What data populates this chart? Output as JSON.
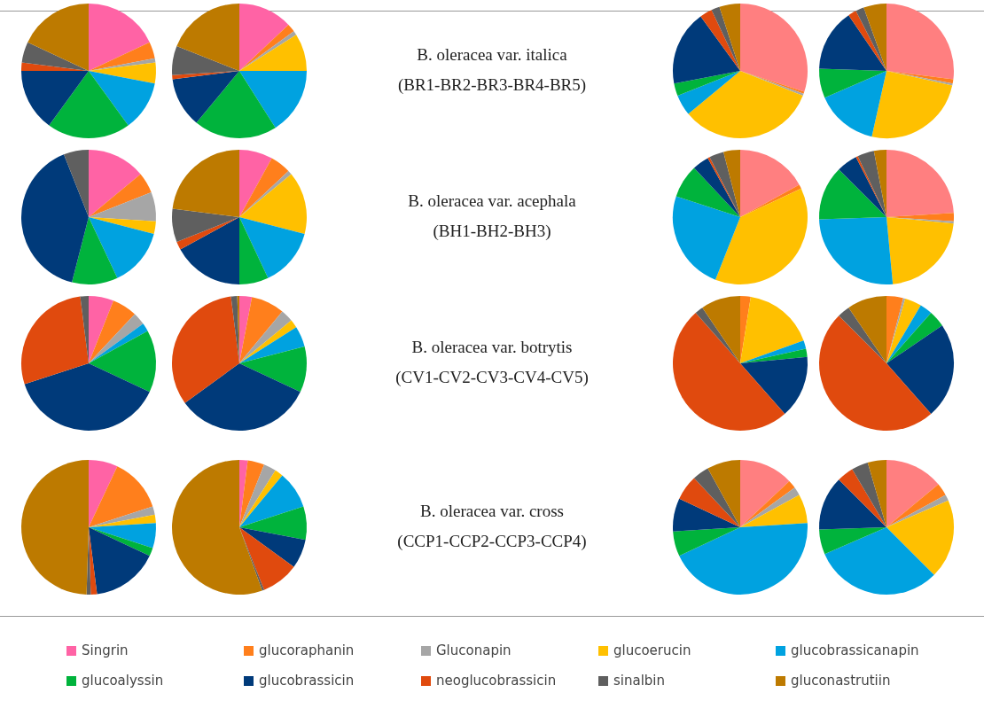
{
  "chart_data": [
    {
      "type": "pie",
      "categories": [
        "Singrin",
        "glucoraphanin",
        "Gluconapin",
        "glucoerucin",
        "glucobrassicanapin",
        "glucoalyssin",
        "glucobrassicin",
        "neoglucobrassicin",
        "sinalbin",
        "gluconastrutiin"
      ],
      "values": [
        18,
        4,
        1,
        5,
        12,
        20,
        15,
        2,
        5,
        18
      ],
      "colors": [
        "#ff63a5",
        "#ff7f1c",
        "#a6a6a6",
        "#ffc000",
        "#00a2e0",
        "#00b33c",
        "#003a7a",
        "#e04a0e",
        "#5f5f5f",
        "#bd7a00"
      ],
      "legend": "bottom"
    },
    {
      "type": "pie",
      "categories": [
        null,
        null,
        null,
        null,
        null,
        null,
        null,
        null,
        null,
        null
      ],
      "values": [
        13,
        2,
        1,
        9,
        16,
        20,
        12,
        1,
        7,
        19
      ],
      "colors": [
        "#ff63a5",
        "#ff7f1c",
        "#a6a6a6",
        "#ffc000",
        "#00a2e0",
        "#00b33c",
        "#003a7a",
        "#e04a0e",
        "#5f5f5f",
        "#bd7a00"
      ]
    },
    {
      "type": "other",
      "title": "B. oleracea var. italica",
      "subtitle": "(BR1-BR2-BR3-BR4-BR5)"
    },
    {
      "type": "pie",
      "categories": [
        null,
        null,
        null,
        null,
        null,
        null,
        null,
        null,
        null,
        null
      ],
      "values": [
        30,
        0.5,
        0.5,
        33,
        5,
        3,
        18,
        3,
        2,
        5
      ],
      "colors": [
        "#ff7f80",
        "#ff7f1c",
        "#a6a6a6",
        "#ffc000",
        "#00a2e0",
        "#00b33c",
        "#003a7a",
        "#e04a0e",
        "#5f5f5f",
        "#bd7a00"
      ]
    },
    {
      "type": "pie",
      "categories": [
        null,
        null,
        null,
        null,
        null,
        null,
        null,
        null,
        null,
        null
      ],
      "values": [
        27,
        1,
        0.5,
        25,
        15,
        7,
        15,
        2,
        2,
        5.5
      ],
      "colors": [
        "#ff7f80",
        "#ff7f1c",
        "#a6a6a6",
        "#ffc000",
        "#00a2e0",
        "#00b33c",
        "#003a7a",
        "#e04a0e",
        "#5f5f5f",
        "#bd7a00"
      ]
    },
    {
      "type": "pie",
      "categories": [
        null,
        null,
        null,
        null,
        null,
        null,
        null,
        null,
        null,
        null
      ],
      "values": [
        14,
        5,
        7,
        3,
        14,
        11,
        40,
        0,
        6,
        0
      ],
      "colors": [
        "#ff63a5",
        "#ff7f1c",
        "#a6a6a6",
        "#ffc000",
        "#00a2e0",
        "#00b33c",
        "#003a7a",
        "#e04a0e",
        "#5f5f5f",
        "#bd7a00"
      ]
    },
    {
      "type": "pie",
      "categories": [
        null,
        null,
        null,
        null,
        null,
        null,
        null,
        null,
        null,
        null
      ],
      "values": [
        8,
        5,
        1,
        15,
        14,
        7,
        17,
        2,
        8,
        23
      ],
      "colors": [
        "#ff63a5",
        "#ff7f1c",
        "#a6a6a6",
        "#ffc000",
        "#00a2e0",
        "#00b33c",
        "#003a7a",
        "#e04a0e",
        "#5f5f5f",
        "#bd7a00"
      ]
    },
    {
      "type": "other",
      "title": "B. oleracea var. acephala",
      "subtitle": "(BH1-BH2-BH3)"
    },
    {
      "type": "pie",
      "categories": [
        null,
        null,
        null,
        null,
        null,
        null,
        null,
        null,
        null,
        null
      ],
      "values": [
        17,
        1,
        0,
        38,
        24,
        8,
        4,
        0.5,
        3.5,
        4
      ],
      "colors": [
        "#ff7f80",
        "#ff7f1c",
        "#a6a6a6",
        "#ffc000",
        "#00a2e0",
        "#00b33c",
        "#003a7a",
        "#e04a0e",
        "#5f5f5f",
        "#bd7a00"
      ]
    },
    {
      "type": "pie",
      "categories": [
        null,
        null,
        null,
        null,
        null,
        null,
        null,
        null,
        null,
        null
      ],
      "values": [
        24,
        2,
        0.5,
        22,
        26,
        13,
        5,
        0.5,
        4,
        3
      ],
      "colors": [
        "#ff7f80",
        "#ff7f1c",
        "#a6a6a6",
        "#ffc000",
        "#00a2e0",
        "#00b33c",
        "#003a7a",
        "#e04a0e",
        "#5f5f5f",
        "#bd7a00"
      ]
    },
    {
      "type": "pie",
      "categories": [
        null,
        null,
        null,
        null,
        null,
        null,
        null,
        null,
        null,
        null
      ],
      "values": [
        6,
        6,
        3,
        0,
        2,
        15,
        38,
        28,
        2,
        0
      ],
      "colors": [
        "#ff63a5",
        "#ff7f1c",
        "#a6a6a6",
        "#ffc000",
        "#00a2e0",
        "#00b33c",
        "#003a7a",
        "#e04a0e",
        "#5f5f5f",
        "#bd7a00"
      ]
    },
    {
      "type": "pie",
      "categories": [
        null,
        null,
        null,
        null,
        null,
        null,
        null,
        null,
        null,
        null
      ],
      "values": [
        3,
        8,
        3,
        2,
        5,
        11,
        33,
        33,
        1.5,
        0.5
      ],
      "colors": [
        "#ff63a5",
        "#ff7f1c",
        "#a6a6a6",
        "#ffc000",
        "#00a2e0",
        "#00b33c",
        "#003a7a",
        "#e04a0e",
        "#5f5f5f",
        "#bd7a00"
      ]
    },
    {
      "type": "other",
      "title": "B. oleracea var. botrytis",
      "subtitle": "(CV1-CV2-CV3-CV4-CV5)"
    },
    {
      "type": "pie",
      "categories": [
        null,
        null,
        null,
        null,
        null,
        null,
        null,
        null,
        null,
        null
      ],
      "values": [
        0,
        2.5,
        0,
        17,
        2,
        2,
        15,
        50,
        2,
        9.5
      ],
      "colors": [
        "#ff7f80",
        "#ff7f1c",
        "#a6a6a6",
        "#ffc000",
        "#00a2e0",
        "#00b33c",
        "#003a7a",
        "#e04a0e",
        "#5f5f5f",
        "#bd7a00"
      ]
    },
    {
      "type": "pie",
      "categories": [
        null,
        null,
        null,
        null,
        null,
        null,
        null,
        null,
        null,
        null
      ],
      "values": [
        0,
        4,
        0.5,
        4,
        3,
        4,
        23,
        49,
        3,
        9.5
      ],
      "colors": [
        "#ff7f80",
        "#ff7f1c",
        "#a6a6a6",
        "#ffc000",
        "#00a2e0",
        "#00b33c",
        "#003a7a",
        "#e04a0e",
        "#5f5f5f",
        "#bd7a00"
      ]
    },
    {
      "type": "pie",
      "categories": [
        null,
        null,
        null,
        null,
        null,
        null,
        null,
        null,
        null,
        null
      ],
      "values": [
        7,
        13,
        2,
        2,
        6,
        2,
        16,
        1.5,
        1,
        49.5
      ],
      "colors": [
        "#ff63a5",
        "#ff7f1c",
        "#a6a6a6",
        "#ffc000",
        "#00a2e0",
        "#00b33c",
        "#003a7a",
        "#e04a0e",
        "#5f5f5f",
        "#bd7a00"
      ]
    },
    {
      "type": "pie",
      "categories": [
        null,
        null,
        null,
        null,
        null,
        null,
        null,
        null,
        null,
        null
      ],
      "values": [
        2,
        4,
        3,
        2,
        9,
        8,
        7,
        9,
        0.5,
        55.5
      ],
      "colors": [
        "#ff63a5",
        "#ff7f1c",
        "#a6a6a6",
        "#ffc000",
        "#00a2e0",
        "#00b33c",
        "#003a7a",
        "#e04a0e",
        "#5f5f5f",
        "#bd7a00"
      ]
    },
    {
      "type": "other",
      "title": "B. oleracea var. cross",
      "subtitle": "(CCP1-CCP2-CCP3-CCP4)"
    },
    {
      "type": "pie",
      "categories": [
        null,
        null,
        null,
        null,
        null,
        null,
        null,
        null,
        null,
        null
      ],
      "values": [
        13,
        2,
        2,
        7,
        44,
        6,
        8,
        6,
        4,
        8
      ],
      "colors": [
        "#ff7f80",
        "#ff7f1c",
        "#a6a6a6",
        "#ffc000",
        "#00a2e0",
        "#00b33c",
        "#003a7a",
        "#e04a0e",
        "#5f5f5f",
        "#bd7a00"
      ]
    },
    {
      "type": "pie",
      "categories": [
        null,
        null,
        null,
        null,
        null,
        null,
        null,
        null,
        null,
        null
      ],
      "values": [
        14,
        3,
        1.5,
        19,
        31,
        6,
        13,
        4,
        4,
        4.5
      ],
      "colors": [
        "#ff7f80",
        "#ff7f1c",
        "#a6a6a6",
        "#ffc000",
        "#00a2e0",
        "#00b33c",
        "#003a7a",
        "#e04a0e",
        "#5f5f5f",
        "#bd7a00"
      ]
    }
  ]
}
